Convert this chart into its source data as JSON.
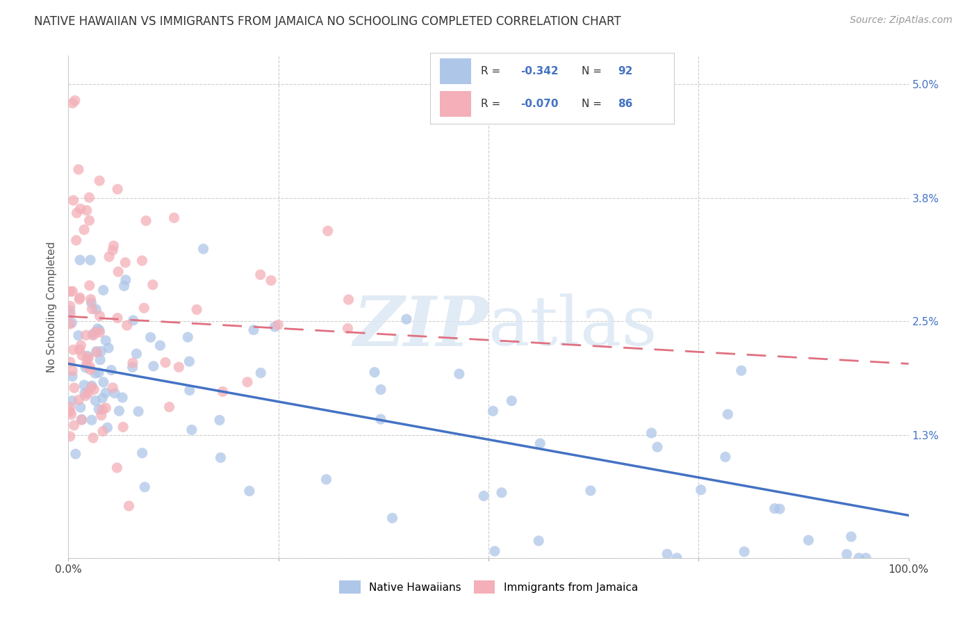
{
  "title": "NATIVE HAWAIIAN VS IMMIGRANTS FROM JAMAICA NO SCHOOLING COMPLETED CORRELATION CHART",
  "source": "Source: ZipAtlas.com",
  "ylabel": "No Schooling Completed",
  "ytick_vals": [
    0.0,
    1.3,
    2.5,
    3.8,
    5.0
  ],
  "ytick_labels": [
    "",
    "1.3%",
    "2.5%",
    "3.8%",
    "5.0%"
  ],
  "xtick_labels": [
    "0.0%",
    "",
    "",
    "",
    "100.0%"
  ],
  "xlim": [
    0,
    100
  ],
  "ylim": [
    0,
    5.3
  ],
  "legend_r_blue": "-0.342",
  "legend_n_blue": "92",
  "legend_r_pink": "-0.070",
  "legend_n_pink": "86",
  "blue_color": "#aec6e8",
  "pink_color": "#f4afb8",
  "blue_line_color": "#4472c4",
  "pink_line_color": "#e07080",
  "text_dark": "#404040",
  "text_blue": "#4472c4",
  "blue_line_start_y": 2.05,
  "blue_line_end_y": 0.45,
  "pink_line_start_y": 2.55,
  "pink_line_end_y": 2.05
}
